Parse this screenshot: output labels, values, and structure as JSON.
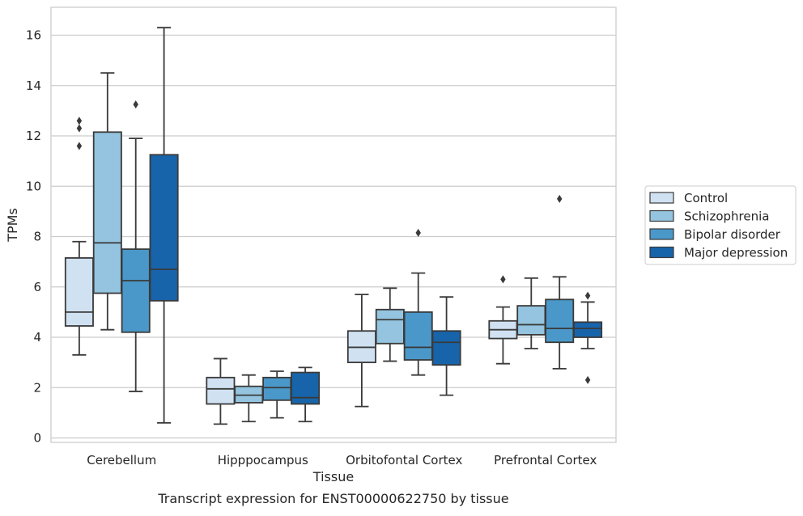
{
  "chart_data": {
    "type": "box",
    "caption": "Transcript expression for ENST00000622750 by tissue",
    "xlabel": "Tissue",
    "ylabel": "TPMs",
    "ylim": [
      -0.2,
      17.0
    ],
    "yticks": [
      0,
      2,
      4,
      6,
      8,
      10,
      12,
      14,
      16
    ],
    "grid": true,
    "legend_position": "right",
    "categories": [
      "Cerebellum",
      "Hipppocampus",
      "Orbitofontal Cortex",
      "Prefrontal Cortex"
    ],
    "series": [
      {
        "name": "Control",
        "color": "#d0e1f2",
        "boxes": [
          {
            "whislo": 3.3,
            "q1": 4.45,
            "med": 5.0,
            "q3": 7.15,
            "whishi": 7.8,
            "fliers": [
              11.6,
              12.3,
              12.6
            ]
          },
          {
            "whislo": 0.55,
            "q1": 1.35,
            "med": 1.95,
            "q3": 2.4,
            "whishi": 3.15,
            "fliers": []
          },
          {
            "whislo": 1.25,
            "q1": 3.0,
            "med": 3.6,
            "q3": 4.25,
            "whishi": 5.7,
            "fliers": []
          },
          {
            "whislo": 2.95,
            "q1": 3.95,
            "med": 4.3,
            "q3": 4.65,
            "whishi": 5.2,
            "fliers": [
              6.3
            ]
          }
        ]
      },
      {
        "name": "Schizophrenia",
        "color": "#94c4df",
        "boxes": [
          {
            "whislo": 4.3,
            "q1": 5.75,
            "med": 7.75,
            "q3": 12.15,
            "whishi": 14.5,
            "fliers": []
          },
          {
            "whislo": 0.65,
            "q1": 1.4,
            "med": 1.7,
            "q3": 2.05,
            "whishi": 2.5,
            "fliers": []
          },
          {
            "whislo": 3.05,
            "q1": 3.75,
            "med": 4.7,
            "q3": 5.1,
            "whishi": 5.95,
            "fliers": []
          },
          {
            "whislo": 3.55,
            "q1": 4.1,
            "med": 4.5,
            "q3": 5.25,
            "whishi": 6.35,
            "fliers": []
          }
        ]
      },
      {
        "name": "Bipolar disorder",
        "color": "#4a98c9",
        "boxes": [
          {
            "whislo": 1.85,
            "q1": 4.2,
            "med": 6.25,
            "q3": 7.5,
            "whishi": 11.9,
            "fliers": [
              13.25
            ]
          },
          {
            "whislo": 0.8,
            "q1": 1.5,
            "med": 2.0,
            "q3": 2.4,
            "whishi": 2.65,
            "fliers": []
          },
          {
            "whislo": 2.5,
            "q1": 3.1,
            "med": 3.6,
            "q3": 5.0,
            "whishi": 6.55,
            "fliers": [
              8.15
            ]
          },
          {
            "whislo": 2.75,
            "q1": 3.8,
            "med": 4.35,
            "q3": 5.5,
            "whishi": 6.4,
            "fliers": [
              9.5
            ]
          }
        ]
      },
      {
        "name": "Major depression",
        "color": "#1764ab",
        "boxes": [
          {
            "whislo": 0.6,
            "q1": 5.45,
            "med": 6.7,
            "q3": 11.25,
            "whishi": 16.3,
            "fliers": []
          },
          {
            "whislo": 0.65,
            "q1": 1.35,
            "med": 1.6,
            "q3": 2.6,
            "whishi": 2.8,
            "fliers": []
          },
          {
            "whislo": 1.7,
            "q1": 2.9,
            "med": 3.8,
            "q3": 4.25,
            "whishi": 5.6,
            "fliers": []
          },
          {
            "whislo": 3.55,
            "q1": 4.0,
            "med": 4.35,
            "q3": 4.6,
            "whishi": 5.4,
            "fliers": [
              5.65,
              2.3
            ]
          }
        ]
      }
    ]
  }
}
